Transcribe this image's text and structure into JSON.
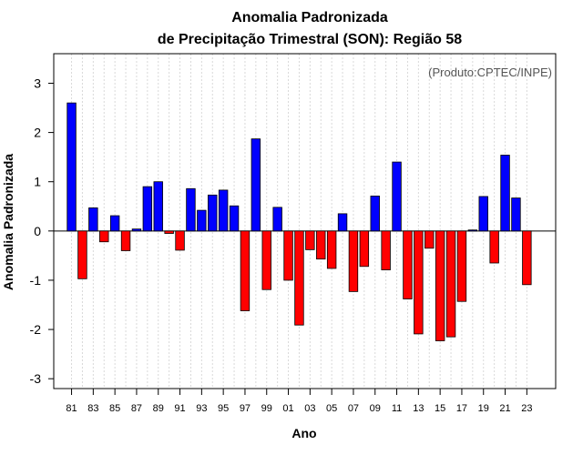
{
  "chart_data": {
    "type": "bar",
    "title": "Anomalia Padronizada",
    "subtitle": "de Precipitação Trimestral (SON): Região 58",
    "xlabel": "Ano",
    "ylabel": "Anomalia Padronizada",
    "annotation": "(Produto:CPTEC/INPE)",
    "ylim": [
      -3.2,
      3.6
    ],
    "yticks": [
      -3,
      -2,
      -1,
      0,
      1,
      2,
      3
    ],
    "xtick_labels": [
      "81",
      "83",
      "85",
      "87",
      "89",
      "91",
      "93",
      "95",
      "97",
      "99",
      "01",
      "03",
      "05",
      "07",
      "09",
      "11",
      "13",
      "15",
      "17",
      "19",
      "21",
      "23"
    ],
    "categories": [
      "1981",
      "1982",
      "1983",
      "1984",
      "1985",
      "1986",
      "1987",
      "1988",
      "1989",
      "1990",
      "1991",
      "1992",
      "1993",
      "1994",
      "1995",
      "1996",
      "1997",
      "1998",
      "1999",
      "2000",
      "2001",
      "2002",
      "2003",
      "2004",
      "2005",
      "2006",
      "2007",
      "2008",
      "2009",
      "2010",
      "2011",
      "2012",
      "2013",
      "2014",
      "2015",
      "2016",
      "2017",
      "2018",
      "2019",
      "2020",
      "2021",
      "2022",
      "2023"
    ],
    "values": [
      2.6,
      -0.97,
      0.47,
      -0.22,
      0.31,
      -0.4,
      0.04,
      0.9,
      1.0,
      -0.05,
      -0.39,
      0.86,
      0.42,
      0.73,
      0.83,
      0.51,
      -1.62,
      1.87,
      -1.19,
      0.48,
      -1.0,
      -1.91,
      -0.38,
      -0.57,
      -0.76,
      0.35,
      -1.23,
      -0.72,
      0.71,
      -0.79,
      1.4,
      -1.38,
      -2.09,
      -0.35,
      -2.23,
      -2.15,
      -1.43,
      0.02,
      0.7,
      -0.65,
      1.54,
      0.67,
      -1.09
    ],
    "colors": {
      "positive": "#0000ff",
      "negative": "#ff0000",
      "grid": "#d9d9d9",
      "outline": "#000000"
    },
    "grid": true
  }
}
